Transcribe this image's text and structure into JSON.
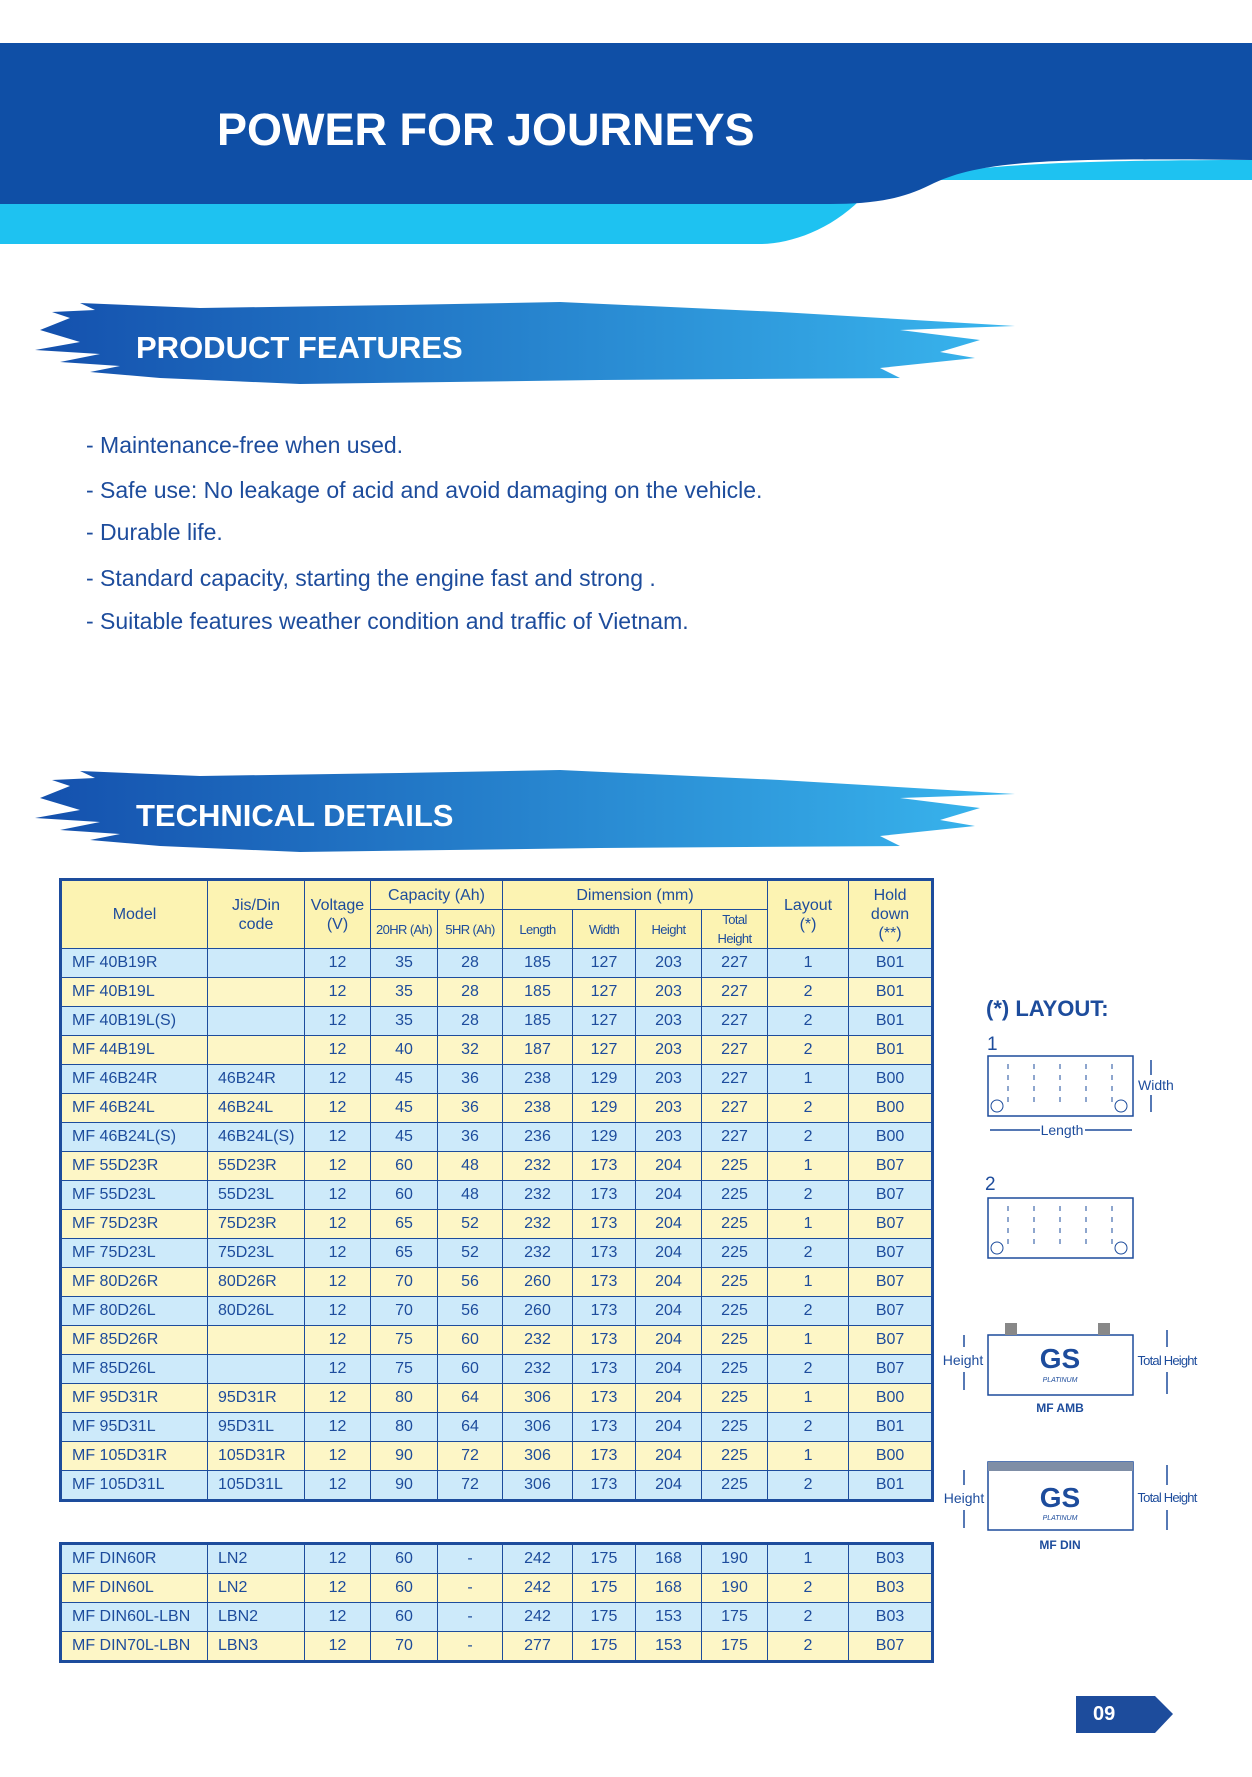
{
  "header": {
    "title": "POWER FOR JOURNEYS"
  },
  "features": {
    "title": "PRODUCT FEATURES",
    "items": [
      "- Maintenance-free when used.",
      "- Safe use: No leakage of acid and avoid damaging on the vehicle.",
      "- Durable life.",
      "- Standard capacity, starting the engine fast and strong .",
      "- Suitable features weather condition and traffic of Vietnam."
    ]
  },
  "technical": {
    "title": "TECHNICAL DETAILS"
  },
  "table": {
    "headers": {
      "model": "Model",
      "code": "Jis/Din\ncode",
      "voltage": "Voltage\n(V)",
      "capacity": "Capacity (Ah)",
      "hr20": "20HR (Ah)",
      "hr5": "5HR (Ah)",
      "dimension": "Dimension (mm)",
      "length": "Length",
      "width": "Width",
      "height": "Height",
      "total_height": "Total Height",
      "layout": "Layout\n(*)",
      "hold_down": "Hold down\n(**)"
    },
    "groups": [
      [
        [
          "MF 40B19R",
          null,
          12,
          35,
          28,
          185,
          127,
          203,
          227,
          1,
          "B01"
        ],
        [
          "MF 40B19L",
          null,
          12,
          35,
          28,
          185,
          127,
          203,
          227,
          2,
          "B01"
        ],
        [
          "MF 40B19L(S)",
          null,
          12,
          35,
          28,
          185,
          127,
          203,
          227,
          2,
          "B01"
        ],
        [
          "MF 44B19L",
          null,
          12,
          40,
          32,
          187,
          127,
          203,
          227,
          2,
          "B01"
        ],
        [
          "MF 46B24R",
          "46B24R",
          12,
          45,
          36,
          238,
          129,
          203,
          227,
          1,
          "B00"
        ],
        [
          "MF 46B24L",
          "46B24L",
          12,
          45,
          36,
          238,
          129,
          203,
          227,
          2,
          "B00"
        ],
        [
          "MF 46B24L(S)",
          "46B24L(S)",
          12,
          45,
          36,
          236,
          129,
          203,
          227,
          2,
          "B00"
        ],
        [
          "MF 55D23R",
          "55D23R",
          12,
          60,
          48,
          232,
          173,
          204,
          225,
          1,
          "B07"
        ],
        [
          "MF 55D23L",
          "55D23L",
          12,
          60,
          48,
          232,
          173,
          204,
          225,
          2,
          "B07"
        ],
        [
          "MF 75D23R",
          "75D23R",
          12,
          65,
          52,
          232,
          173,
          204,
          225,
          1,
          "B07"
        ],
        [
          "MF 75D23L",
          "75D23L",
          12,
          65,
          52,
          232,
          173,
          204,
          225,
          2,
          "B07"
        ],
        [
          "MF 80D26R",
          "80D26R",
          12,
          70,
          56,
          260,
          173,
          204,
          225,
          1,
          "B07"
        ],
        [
          "MF 80D26L",
          "80D26L",
          12,
          70,
          56,
          260,
          173,
          204,
          225,
          2,
          "B07"
        ],
        [
          "MF 85D26R",
          null,
          12,
          75,
          60,
          232,
          173,
          204,
          225,
          1,
          "B07"
        ],
        [
          "MF 85D26L",
          null,
          12,
          75,
          60,
          232,
          173,
          204,
          225,
          2,
          "B07"
        ],
        [
          "MF 95D31R",
          "95D31R",
          12,
          80,
          64,
          306,
          173,
          204,
          225,
          1,
          "B00"
        ],
        [
          "MF 95D31L",
          "95D31L",
          12,
          80,
          64,
          306,
          173,
          204,
          225,
          2,
          "B01"
        ],
        [
          "MF 105D31R",
          "105D31R",
          12,
          90,
          72,
          306,
          173,
          204,
          225,
          1,
          "B00"
        ],
        [
          "MF 105D31L",
          "105D31L",
          12,
          90,
          72,
          306,
          173,
          204,
          225,
          2,
          "B01"
        ]
      ],
      [
        [
          "MF DIN60R",
          "LN2",
          12,
          60,
          "-",
          242,
          175,
          168,
          190,
          1,
          "B03"
        ],
        [
          "MF DIN60L",
          "LN2",
          12,
          60,
          "-",
          242,
          175,
          168,
          190,
          2,
          "B03"
        ],
        [
          "MF DIN60L-LBN",
          "LBN2",
          12,
          60,
          "-",
          242,
          175,
          153,
          175,
          2,
          "B03"
        ],
        [
          "MF DIN70L-LBN",
          "LBN3",
          12,
          70,
          "-",
          277,
          175,
          153,
          175,
          2,
          "B07"
        ]
      ]
    ]
  },
  "layout": {
    "title": "(*) LAYOUT:",
    "one": "1",
    "two": "2",
    "width": "Width",
    "length": "Length",
    "amb": {
      "height": "Height",
      "total_height": "Total Height",
      "brand": "GS",
      "sub": "PLATINUM",
      "name": "MF AMB"
    },
    "din": {
      "height": "Height",
      "total_height": "Total Height",
      "brand": "GS",
      "sub": "PLATINUM",
      "name": "MF DIN"
    }
  },
  "page_number": "09"
}
